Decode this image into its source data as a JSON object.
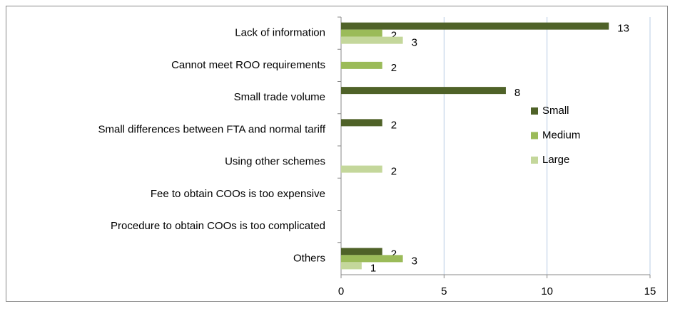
{
  "chart_data": {
    "type": "bar",
    "orientation": "horizontal",
    "categories": [
      "Lack of information",
      "Cannot meet ROO requirements",
      "Small trade volume",
      "Small differences between FTA and normal tariff",
      "Using other schemes",
      "Fee to obtain COOs is too expensive",
      "Procedure to obtain COOs is too complicated",
      "Others"
    ],
    "series": [
      {
        "name": "Small",
        "color": "#4f6228",
        "values": [
          13,
          null,
          8,
          2,
          null,
          null,
          null,
          2
        ]
      },
      {
        "name": "Medium",
        "color": "#9bbb59",
        "values": [
          2,
          2,
          null,
          null,
          null,
          null,
          null,
          3
        ]
      },
      {
        "name": "Large",
        "color": "#c4d79b",
        "values": [
          3,
          null,
          null,
          null,
          2,
          null,
          null,
          1
        ]
      }
    ],
    "xlim": [
      0,
      15
    ],
    "xticks": [
      0,
      5,
      10,
      15
    ],
    "grid": true,
    "legend": "right"
  }
}
